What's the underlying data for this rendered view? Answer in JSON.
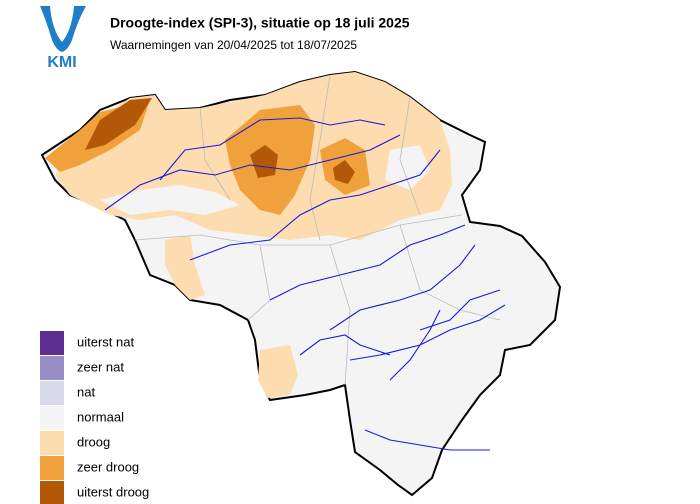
{
  "logo": {
    "text": "KMI"
  },
  "header": {
    "title": "Droogte-index (SPI-3), situatie op 18 juli 2025",
    "subtitle": "Waarnemingen van 20/04/2025 tot 18/07/2025"
  },
  "legend": [
    {
      "label": "uiterst nat",
      "color": "#5e2f93"
    },
    {
      "label": "zeer nat",
      "color": "#9a8ec6"
    },
    {
      "label": "nat",
      "color": "#d9d9ec"
    },
    {
      "label": "normaal",
      "color": "#f4f4f4"
    },
    {
      "label": "droog",
      "color": "#fddcb0"
    },
    {
      "label": "zeer droog",
      "color": "#f0a13c"
    },
    {
      "label": "uiterst droog",
      "color": "#b35806"
    }
  ]
}
